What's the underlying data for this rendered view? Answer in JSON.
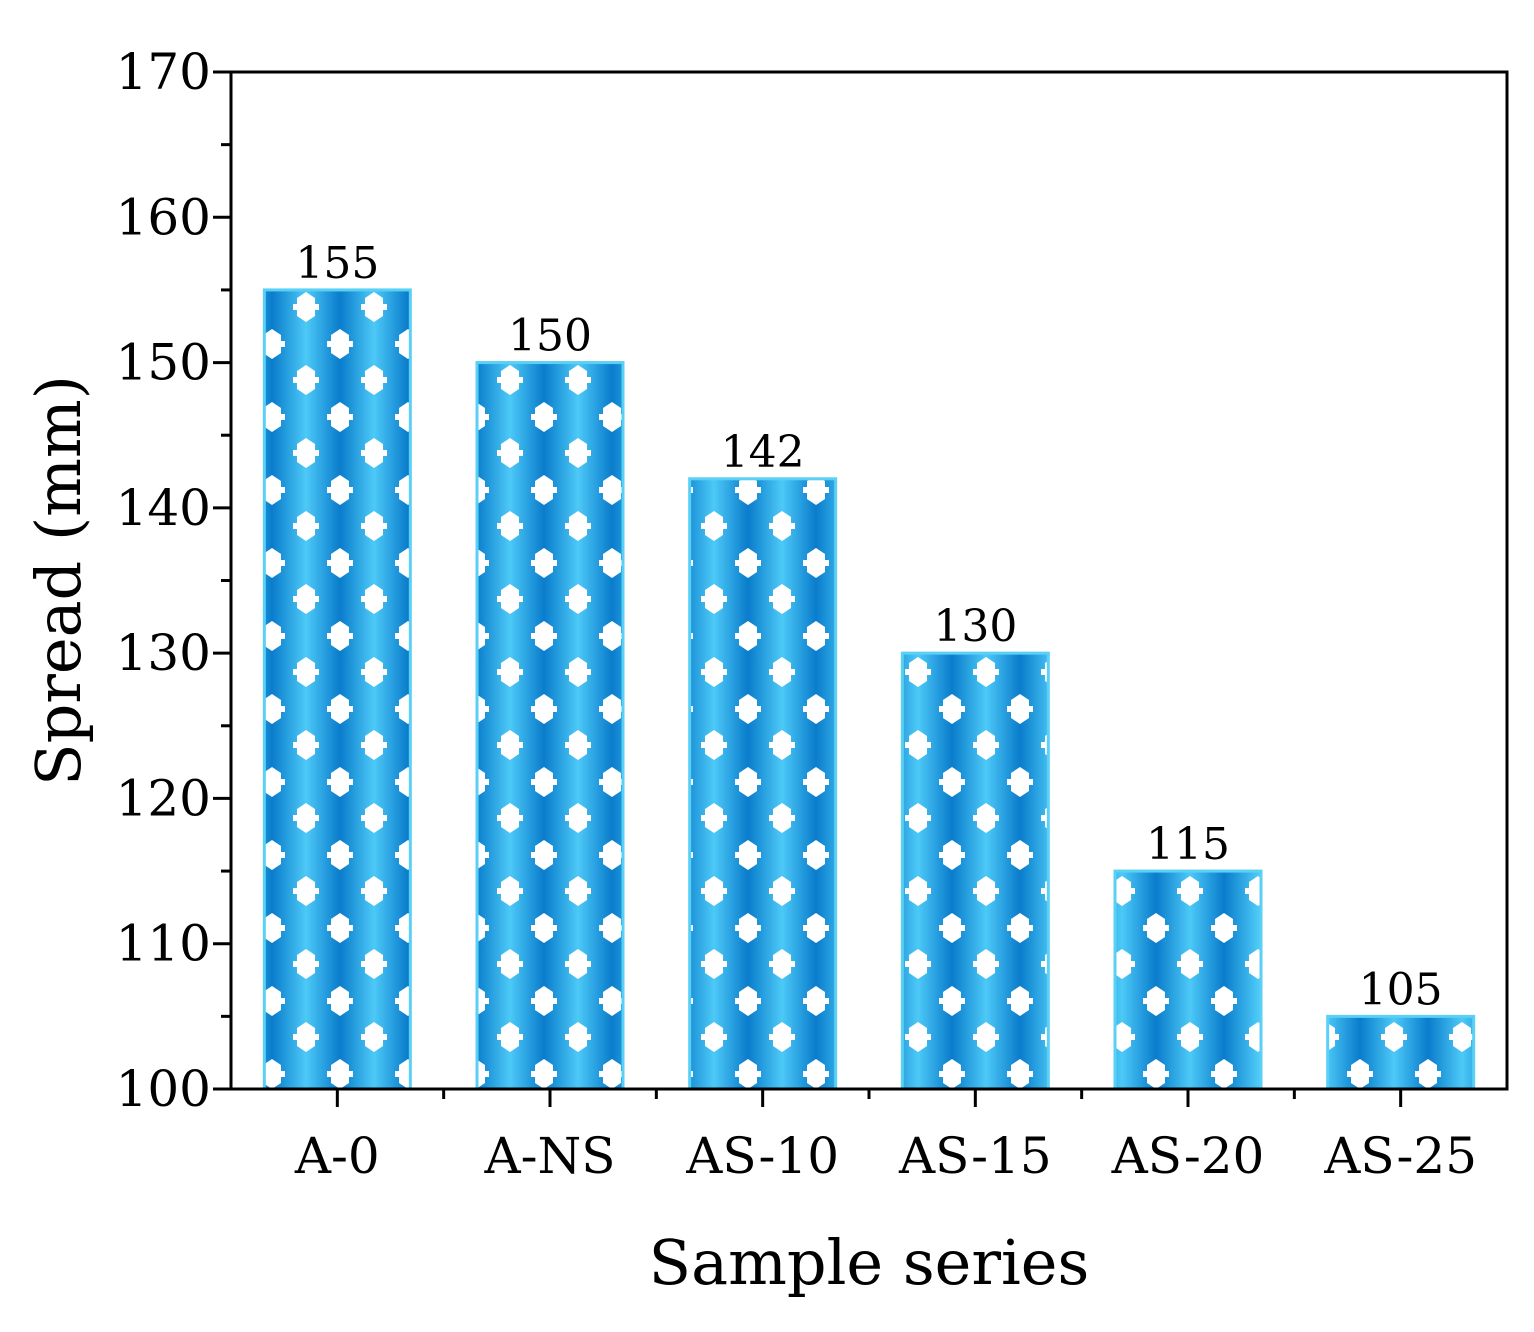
{
  "chart_data": {
    "type": "bar",
    "title": "",
    "xlabel": "Sample series",
    "ylabel": "Spread (mm)",
    "categories": [
      "A-0",
      "A-NS",
      "AS-10",
      "AS-15",
      "AS-20",
      "AS-25"
    ],
    "values": [
      155,
      150,
      142,
      130,
      115,
      105
    ],
    "data_labels": [
      "155",
      "150",
      "142",
      "130",
      "115",
      "105"
    ],
    "ylim": [
      100,
      170
    ],
    "yticks": [
      100,
      110,
      120,
      130,
      140,
      150,
      160,
      170
    ],
    "ytick_labels": [
      "100",
      "110",
      "120",
      "130",
      "140",
      "150",
      "160",
      "170"
    ],
    "grid": false,
    "legend": "none",
    "colors": {
      "bar_dark": "#0a7ccc",
      "bar_light": "#4cc9f7",
      "bar_edge": "#5ad0f5",
      "pattern_holes": "#ffffff",
      "axis": "#000000"
    }
  }
}
